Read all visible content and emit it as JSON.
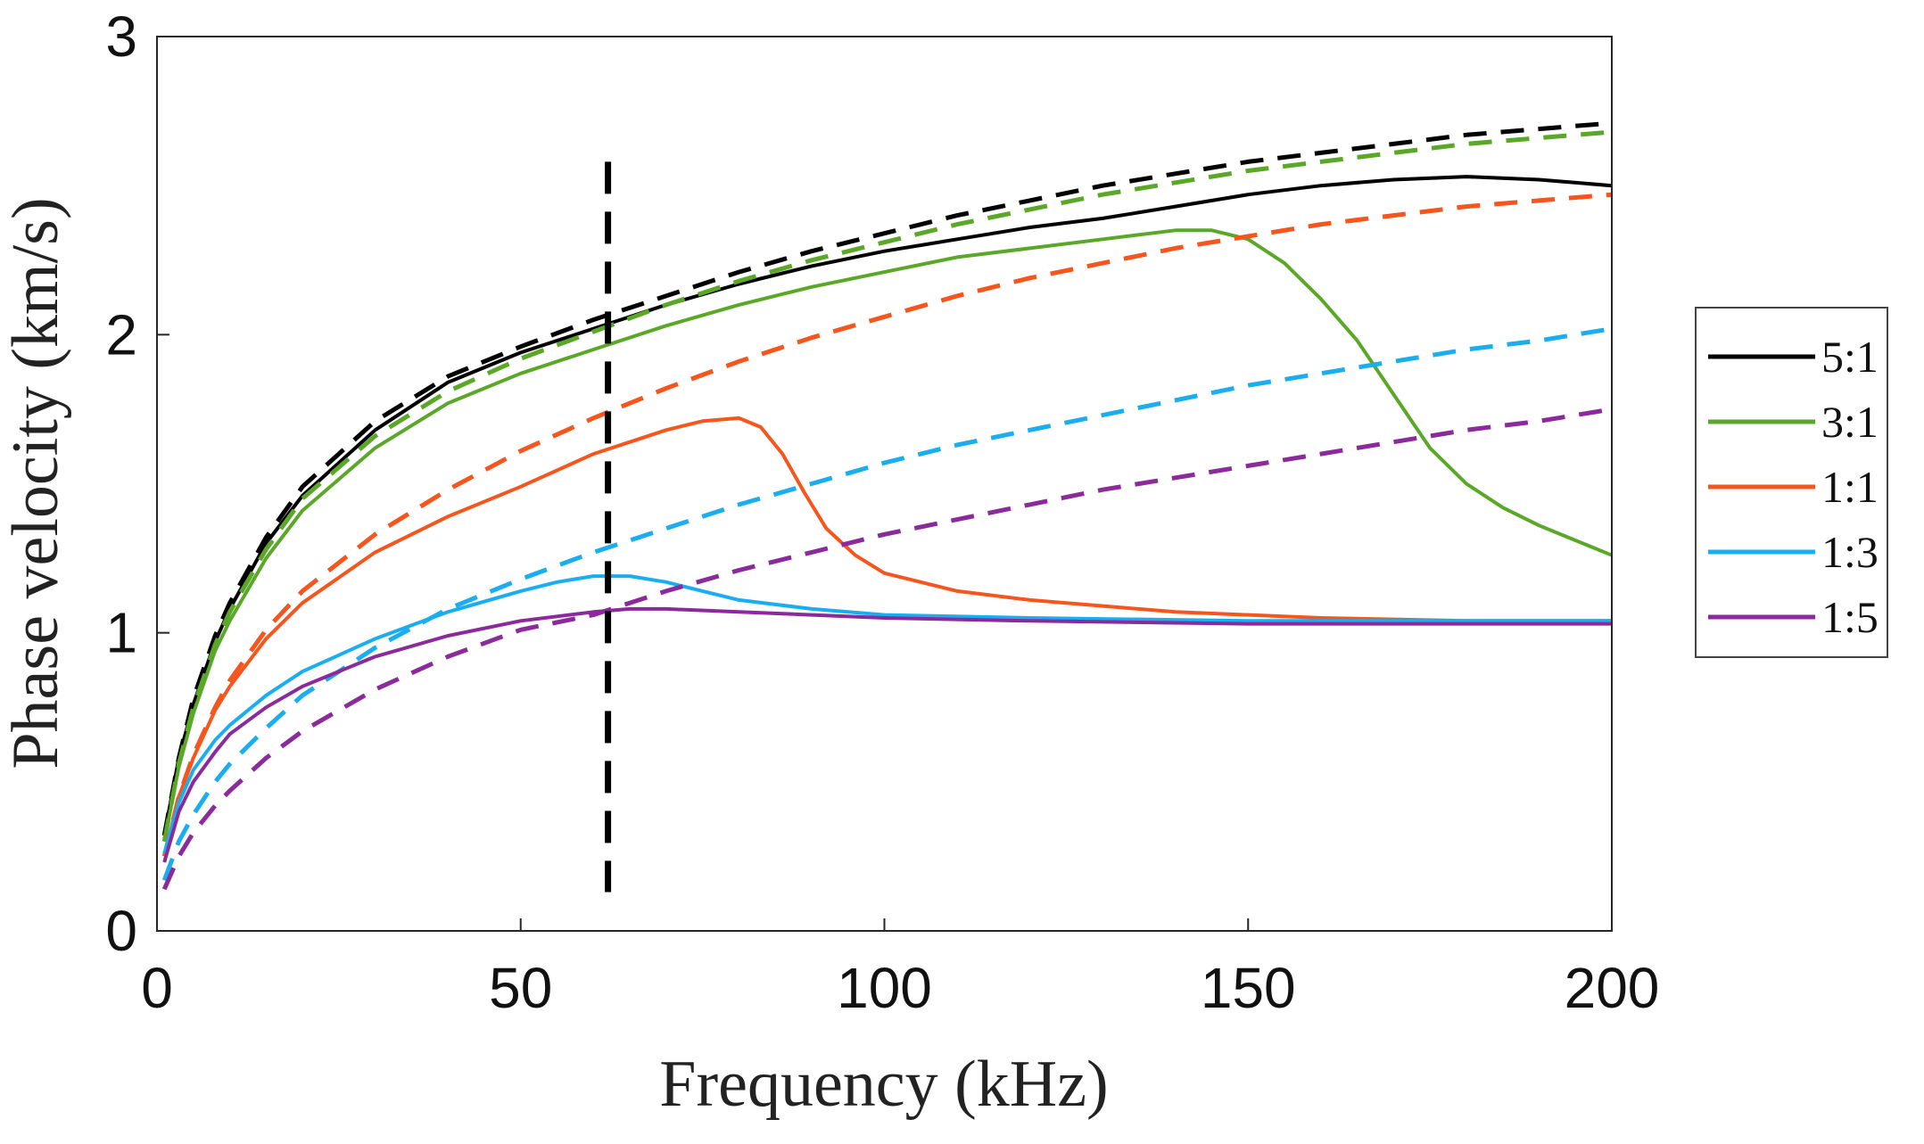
{
  "chart_data": {
    "type": "line",
    "title": "",
    "xlabel": "Frequency (kHz)",
    "ylabel": "Phase velocity (km/s)",
    "xlim": [
      0,
      200
    ],
    "ylim": [
      0,
      3
    ],
    "xticks": [
      0,
      50,
      100,
      150,
      200
    ],
    "yticks": [
      0,
      1,
      2,
      3
    ],
    "xtick_labels": [
      "0",
      "50",
      "100",
      "150",
      "200"
    ],
    "ytick_labels": [
      "0",
      "1",
      "2",
      "3"
    ],
    "grid": false,
    "legend_position": "right",
    "reference_line": {
      "x": 62,
      "y_range": [
        0.13,
        2.58
      ],
      "color": "#000000",
      "style": "dashed"
    },
    "series": [
      {
        "name": "5:1",
        "color": "#000000",
        "style": "solid",
        "points": [
          [
            1,
            0.32
          ],
          [
            3,
            0.58
          ],
          [
            5,
            0.76
          ],
          [
            8,
            0.97
          ],
          [
            10,
            1.08
          ],
          [
            15,
            1.3
          ],
          [
            20,
            1.46
          ],
          [
            30,
            1.68
          ],
          [
            40,
            1.84
          ],
          [
            50,
            1.94
          ],
          [
            60,
            2.02
          ],
          [
            70,
            2.1
          ],
          [
            80,
            2.17
          ],
          [
            90,
            2.23
          ],
          [
            100,
            2.28
          ],
          [
            110,
            2.32
          ],
          [
            120,
            2.36
          ],
          [
            130,
            2.39
          ],
          [
            140,
            2.43
          ],
          [
            150,
            2.47
          ],
          [
            160,
            2.5
          ],
          [
            170,
            2.52
          ],
          [
            180,
            2.53
          ],
          [
            190,
            2.52
          ],
          [
            200,
            2.5
          ]
        ]
      },
      {
        "name": "5:1",
        "color": "#000000",
        "style": "dashed",
        "points": [
          [
            1,
            0.32
          ],
          [
            3,
            0.58
          ],
          [
            5,
            0.78
          ],
          [
            8,
            0.99
          ],
          [
            10,
            1.1
          ],
          [
            15,
            1.32
          ],
          [
            20,
            1.49
          ],
          [
            30,
            1.71
          ],
          [
            40,
            1.86
          ],
          [
            50,
            1.96
          ],
          [
            60,
            2.05
          ],
          [
            70,
            2.13
          ],
          [
            80,
            2.21
          ],
          [
            90,
            2.28
          ],
          [
            100,
            2.34
          ],
          [
            110,
            2.4
          ],
          [
            120,
            2.45
          ],
          [
            130,
            2.5
          ],
          [
            140,
            2.54
          ],
          [
            150,
            2.58
          ],
          [
            160,
            2.61
          ],
          [
            170,
            2.64
          ],
          [
            180,
            2.67
          ],
          [
            190,
            2.69
          ],
          [
            200,
            2.71
          ]
        ]
      },
      {
        "name": "3:1",
        "color": "#5ba829",
        "style": "solid",
        "points": [
          [
            1,
            0.3
          ],
          [
            3,
            0.55
          ],
          [
            5,
            0.73
          ],
          [
            8,
            0.94
          ],
          [
            10,
            1.04
          ],
          [
            15,
            1.25
          ],
          [
            20,
            1.41
          ],
          [
            30,
            1.62
          ],
          [
            40,
            1.77
          ],
          [
            50,
            1.87
          ],
          [
            60,
            1.95
          ],
          [
            70,
            2.03
          ],
          [
            80,
            2.1
          ],
          [
            90,
            2.16
          ],
          [
            100,
            2.21
          ],
          [
            110,
            2.26
          ],
          [
            120,
            2.29
          ],
          [
            130,
            2.32
          ],
          [
            140,
            2.35
          ],
          [
            145,
            2.35
          ],
          [
            150,
            2.32
          ],
          [
            155,
            2.24
          ],
          [
            160,
            2.12
          ],
          [
            165,
            1.98
          ],
          [
            170,
            1.8
          ],
          [
            175,
            1.62
          ],
          [
            180,
            1.5
          ],
          [
            185,
            1.42
          ],
          [
            190,
            1.36
          ],
          [
            195,
            1.31
          ],
          [
            200,
            1.26
          ]
        ]
      },
      {
        "name": "3:1",
        "color": "#5ba829",
        "style": "dashed",
        "points": [
          [
            1,
            0.3
          ],
          [
            3,
            0.56
          ],
          [
            5,
            0.75
          ],
          [
            8,
            0.96
          ],
          [
            10,
            1.07
          ],
          [
            15,
            1.28
          ],
          [
            20,
            1.45
          ],
          [
            30,
            1.66
          ],
          [
            40,
            1.81
          ],
          [
            50,
            1.92
          ],
          [
            60,
            2.01
          ],
          [
            70,
            2.1
          ],
          [
            80,
            2.18
          ],
          [
            90,
            2.25
          ],
          [
            100,
            2.31
          ],
          [
            110,
            2.37
          ],
          [
            120,
            2.42
          ],
          [
            130,
            2.47
          ],
          [
            140,
            2.51
          ],
          [
            150,
            2.55
          ],
          [
            160,
            2.58
          ],
          [
            170,
            2.61
          ],
          [
            180,
            2.64
          ],
          [
            190,
            2.66
          ],
          [
            200,
            2.68
          ]
        ]
      },
      {
        "name": "1:1",
        "color": "#f5561d",
        "style": "solid",
        "points": [
          [
            1,
            0.25
          ],
          [
            3,
            0.45
          ],
          [
            5,
            0.58
          ],
          [
            8,
            0.74
          ],
          [
            10,
            0.82
          ],
          [
            15,
            0.98
          ],
          [
            20,
            1.1
          ],
          [
            30,
            1.27
          ],
          [
            40,
            1.39
          ],
          [
            50,
            1.49
          ],
          [
            60,
            1.6
          ],
          [
            65,
            1.64
          ],
          [
            70,
            1.68
          ],
          [
            75,
            1.71
          ],
          [
            80,
            1.72
          ],
          [
            83,
            1.69
          ],
          [
            86,
            1.6
          ],
          [
            89,
            1.47
          ],
          [
            92,
            1.35
          ],
          [
            96,
            1.26
          ],
          [
            100,
            1.2
          ],
          [
            110,
            1.14
          ],
          [
            120,
            1.11
          ],
          [
            140,
            1.07
          ],
          [
            160,
            1.05
          ],
          [
            180,
            1.04
          ],
          [
            200,
            1.04
          ]
        ]
      },
      {
        "name": "1:1",
        "color": "#f5561d",
        "style": "dashed",
        "points": [
          [
            1,
            0.25
          ],
          [
            3,
            0.45
          ],
          [
            5,
            0.59
          ],
          [
            8,
            0.75
          ],
          [
            10,
            0.84
          ],
          [
            15,
            1.01
          ],
          [
            20,
            1.14
          ],
          [
            30,
            1.33
          ],
          [
            40,
            1.48
          ],
          [
            50,
            1.61
          ],
          [
            60,
            1.72
          ],
          [
            70,
            1.82
          ],
          [
            80,
            1.91
          ],
          [
            90,
            1.99
          ],
          [
            100,
            2.06
          ],
          [
            110,
            2.13
          ],
          [
            120,
            2.19
          ],
          [
            130,
            2.24
          ],
          [
            140,
            2.29
          ],
          [
            150,
            2.33
          ],
          [
            160,
            2.37
          ],
          [
            170,
            2.4
          ],
          [
            180,
            2.43
          ],
          [
            190,
            2.45
          ],
          [
            200,
            2.47
          ]
        ]
      },
      {
        "name": "1:3",
        "color": "#1aaef0",
        "style": "solid",
        "points": [
          [
            1,
            0.26
          ],
          [
            3,
            0.43
          ],
          [
            5,
            0.54
          ],
          [
            8,
            0.64
          ],
          [
            10,
            0.69
          ],
          [
            15,
            0.79
          ],
          [
            20,
            0.87
          ],
          [
            30,
            0.98
          ],
          [
            40,
            1.07
          ],
          [
            50,
            1.14
          ],
          [
            55,
            1.17
          ],
          [
            60,
            1.19
          ],
          [
            65,
            1.19
          ],
          [
            70,
            1.17
          ],
          [
            75,
            1.14
          ],
          [
            80,
            1.11
          ],
          [
            90,
            1.08
          ],
          [
            100,
            1.06
          ],
          [
            120,
            1.05
          ],
          [
            150,
            1.04
          ],
          [
            200,
            1.04
          ]
        ]
      },
      {
        "name": "1:3",
        "color": "#1aaef0",
        "style": "dashed",
        "points": [
          [
            1,
            0.17
          ],
          [
            3,
            0.3
          ],
          [
            5,
            0.39
          ],
          [
            8,
            0.5
          ],
          [
            10,
            0.56
          ],
          [
            15,
            0.68
          ],
          [
            20,
            0.79
          ],
          [
            30,
            0.95
          ],
          [
            40,
            1.08
          ],
          [
            50,
            1.18
          ],
          [
            60,
            1.27
          ],
          [
            70,
            1.35
          ],
          [
            80,
            1.43
          ],
          [
            90,
            1.5
          ],
          [
            100,
            1.57
          ],
          [
            110,
            1.63
          ],
          [
            120,
            1.68
          ],
          [
            130,
            1.73
          ],
          [
            140,
            1.78
          ],
          [
            150,
            1.83
          ],
          [
            160,
            1.87
          ],
          [
            170,
            1.91
          ],
          [
            180,
            1.95
          ],
          [
            190,
            1.98
          ],
          [
            200,
            2.02
          ]
        ]
      },
      {
        "name": "1:5",
        "color": "#8b2a9b",
        "style": "solid",
        "points": [
          [
            1,
            0.23
          ],
          [
            3,
            0.4
          ],
          [
            5,
            0.5
          ],
          [
            8,
            0.6
          ],
          [
            10,
            0.66
          ],
          [
            15,
            0.75
          ],
          [
            20,
            0.82
          ],
          [
            30,
            0.92
          ],
          [
            40,
            0.99
          ],
          [
            50,
            1.04
          ],
          [
            60,
            1.07
          ],
          [
            65,
            1.08
          ],
          [
            70,
            1.08
          ],
          [
            80,
            1.07
          ],
          [
            90,
            1.06
          ],
          [
            100,
            1.05
          ],
          [
            120,
            1.04
          ],
          [
            150,
            1.03
          ],
          [
            200,
            1.03
          ]
        ]
      },
      {
        "name": "1:5",
        "color": "#8b2a9b",
        "style": "dashed",
        "points": [
          [
            1,
            0.14
          ],
          [
            3,
            0.25
          ],
          [
            5,
            0.33
          ],
          [
            8,
            0.42
          ],
          [
            10,
            0.47
          ],
          [
            15,
            0.58
          ],
          [
            20,
            0.67
          ],
          [
            30,
            0.81
          ],
          [
            40,
            0.92
          ],
          [
            50,
            1.01
          ],
          [
            60,
            1.06
          ],
          [
            70,
            1.14
          ],
          [
            80,
            1.21
          ],
          [
            90,
            1.27
          ],
          [
            100,
            1.33
          ],
          [
            110,
            1.38
          ],
          [
            120,
            1.43
          ],
          [
            130,
            1.48
          ],
          [
            140,
            1.52
          ],
          [
            150,
            1.56
          ],
          [
            160,
            1.6
          ],
          [
            170,
            1.64
          ],
          [
            180,
            1.68
          ],
          [
            190,
            1.71
          ],
          [
            200,
            1.75
          ]
        ]
      }
    ],
    "legend": [
      {
        "label": "5:1",
        "color": "#000000"
      },
      {
        "label": "3:1",
        "color": "#5ba829"
      },
      {
        "label": "1:1",
        "color": "#f5561d"
      },
      {
        "label": "1:3",
        "color": "#1aaef0"
      },
      {
        "label": "1:5",
        "color": "#8b2a9b"
      }
    ]
  }
}
